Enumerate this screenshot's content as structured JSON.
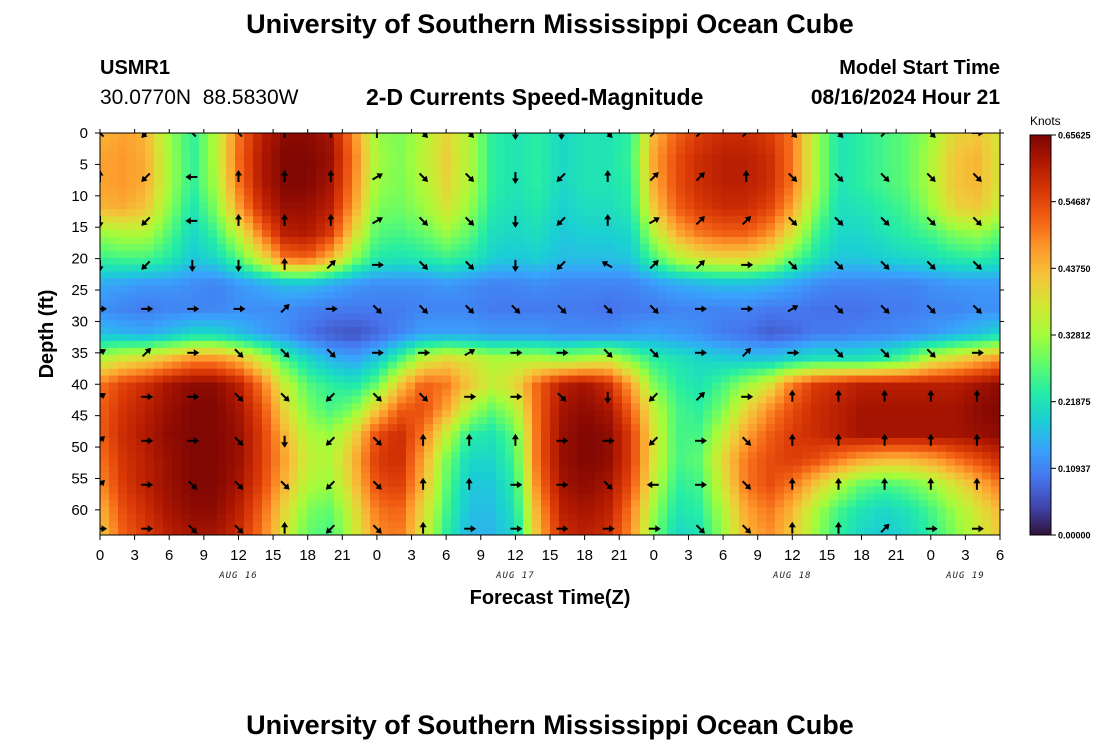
{
  "header": {
    "title": "University of Southern Mississippi Ocean Cube",
    "station_id": "USMR1",
    "coordinates": "30.0770N  88.5830W",
    "plot_title": "2-D Currents Speed-Magnitude",
    "model_start_label": "Model Start Time",
    "model_start_value": "08/16/2024 Hour 21"
  },
  "footer": {
    "title": "University of Southern Mississippi Ocean Cube"
  },
  "colors": {
    "palette": [
      "#30123b",
      "#4145ab",
      "#4675ed",
      "#39a2fc",
      "#1bcfd4",
      "#24eca6",
      "#61fc6c",
      "#a4fc3b",
      "#d1e834",
      "#f3c63a",
      "#fe9b2d",
      "#f36315",
      "#d93806",
      "#b11901",
      "#7a0403"
    ]
  },
  "chart_data": {
    "type": "heatmap",
    "title": "2-D Currents Speed-Magnitude",
    "xlabel": "Forecast Time(Z)",
    "ylabel": "Depth (ft)",
    "x_range_hours": [
      0,
      78
    ],
    "y_range_ft": [
      0,
      64
    ],
    "x_ticks": [
      {
        "h": 0,
        "label": "0"
      },
      {
        "h": 3,
        "label": "3"
      },
      {
        "h": 6,
        "label": "6"
      },
      {
        "h": 9,
        "label": "9"
      },
      {
        "h": 12,
        "label": "12"
      },
      {
        "h": 15,
        "label": "15"
      },
      {
        "h": 18,
        "label": "18"
      },
      {
        "h": 21,
        "label": "21"
      },
      {
        "h": 24,
        "label": "0"
      },
      {
        "h": 27,
        "label": "3"
      },
      {
        "h": 30,
        "label": "6"
      },
      {
        "h": 33,
        "label": "9"
      },
      {
        "h": 36,
        "label": "12"
      },
      {
        "h": 39,
        "label": "15"
      },
      {
        "h": 42,
        "label": "18"
      },
      {
        "h": 45,
        "label": "21"
      },
      {
        "h": 48,
        "label": "0"
      },
      {
        "h": 51,
        "label": "3"
      },
      {
        "h": 54,
        "label": "6"
      },
      {
        "h": 57,
        "label": "9"
      },
      {
        "h": 60,
        "label": "12"
      },
      {
        "h": 63,
        "label": "15"
      },
      {
        "h": 66,
        "label": "18"
      },
      {
        "h": 69,
        "label": "21"
      },
      {
        "h": 72,
        "label": "0"
      },
      {
        "h": 75,
        "label": "3"
      },
      {
        "h": 78,
        "label": "6"
      }
    ],
    "date_labels": [
      {
        "h": 12,
        "label": "AUG 16"
      },
      {
        "h": 36,
        "label": "AUG 17"
      },
      {
        "h": 60,
        "label": "AUG 18"
      },
      {
        "h": 75,
        "label": "AUG 19"
      }
    ],
    "y_ticks": [
      0,
      5,
      10,
      15,
      20,
      25,
      30,
      35,
      40,
      45,
      50,
      55,
      60
    ],
    "colorbar": {
      "unit": "Knots",
      "min": 0.0,
      "max": 0.65625,
      "labels": [
        "0.00000",
        "0.10937",
        "0.21875",
        "0.32812",
        "0.43750",
        "0.54687",
        "0.65625"
      ]
    },
    "time_hours": [
      0,
      2,
      4,
      6,
      8,
      10,
      12,
      14,
      16,
      18,
      20,
      22,
      24,
      26,
      28,
      30,
      32,
      34,
      36,
      38,
      40,
      42,
      44,
      46,
      48,
      50,
      52,
      54,
      56,
      58,
      60,
      62,
      64,
      66,
      68,
      70,
      72,
      74,
      76,
      78
    ],
    "depth_ft": [
      0,
      4,
      8,
      12,
      16,
      20,
      24,
      28,
      32,
      36,
      40,
      44,
      48,
      52,
      56,
      60,
      64
    ],
    "speed_knots": [
      [
        0.44,
        0.46,
        0.44,
        0.32,
        0.24,
        0.34,
        0.5,
        0.6,
        0.64,
        0.64,
        0.62,
        0.48,
        0.32,
        0.3,
        0.34,
        0.4,
        0.34,
        0.24,
        0.22,
        0.24,
        0.2,
        0.22,
        0.22,
        0.24,
        0.44,
        0.52,
        0.56,
        0.58,
        0.58,
        0.56,
        0.5,
        0.34,
        0.22,
        0.24,
        0.26,
        0.28,
        0.32,
        0.4,
        0.42,
        0.38
      ],
      [
        0.46,
        0.47,
        0.45,
        0.33,
        0.24,
        0.34,
        0.51,
        0.61,
        0.65,
        0.65,
        0.63,
        0.5,
        0.33,
        0.3,
        0.35,
        0.41,
        0.34,
        0.24,
        0.22,
        0.24,
        0.2,
        0.22,
        0.22,
        0.25,
        0.46,
        0.54,
        0.58,
        0.6,
        0.6,
        0.58,
        0.5,
        0.34,
        0.22,
        0.24,
        0.26,
        0.28,
        0.34,
        0.42,
        0.44,
        0.38
      ],
      [
        0.46,
        0.47,
        0.45,
        0.33,
        0.24,
        0.33,
        0.5,
        0.61,
        0.65,
        0.65,
        0.62,
        0.49,
        0.32,
        0.3,
        0.34,
        0.4,
        0.34,
        0.24,
        0.22,
        0.24,
        0.2,
        0.22,
        0.22,
        0.24,
        0.45,
        0.54,
        0.58,
        0.6,
        0.6,
        0.58,
        0.5,
        0.34,
        0.22,
        0.24,
        0.26,
        0.28,
        0.34,
        0.42,
        0.44,
        0.38
      ],
      [
        0.44,
        0.45,
        0.42,
        0.31,
        0.22,
        0.3,
        0.46,
        0.58,
        0.63,
        0.63,
        0.6,
        0.46,
        0.3,
        0.29,
        0.32,
        0.38,
        0.32,
        0.23,
        0.21,
        0.23,
        0.19,
        0.21,
        0.21,
        0.23,
        0.42,
        0.52,
        0.56,
        0.58,
        0.58,
        0.55,
        0.46,
        0.31,
        0.21,
        0.22,
        0.24,
        0.26,
        0.32,
        0.4,
        0.42,
        0.36
      ],
      [
        0.32,
        0.34,
        0.34,
        0.27,
        0.2,
        0.25,
        0.36,
        0.5,
        0.6,
        0.61,
        0.56,
        0.4,
        0.27,
        0.26,
        0.28,
        0.32,
        0.28,
        0.21,
        0.2,
        0.21,
        0.18,
        0.19,
        0.19,
        0.2,
        0.34,
        0.45,
        0.5,
        0.52,
        0.52,
        0.48,
        0.38,
        0.26,
        0.2,
        0.2,
        0.22,
        0.24,
        0.26,
        0.3,
        0.32,
        0.28
      ],
      [
        0.25,
        0.26,
        0.26,
        0.23,
        0.18,
        0.2,
        0.27,
        0.38,
        0.5,
        0.52,
        0.44,
        0.31,
        0.23,
        0.22,
        0.23,
        0.25,
        0.23,
        0.19,
        0.18,
        0.19,
        0.17,
        0.17,
        0.17,
        0.18,
        0.26,
        0.34,
        0.38,
        0.4,
        0.4,
        0.36,
        0.28,
        0.22,
        0.18,
        0.18,
        0.19,
        0.2,
        0.21,
        0.23,
        0.24,
        0.22
      ],
      [
        0.15,
        0.14,
        0.13,
        0.13,
        0.12,
        0.11,
        0.13,
        0.15,
        0.17,
        0.17,
        0.15,
        0.13,
        0.12,
        0.12,
        0.12,
        0.13,
        0.12,
        0.11,
        0.11,
        0.12,
        0.11,
        0.11,
        0.11,
        0.11,
        0.13,
        0.15,
        0.16,
        0.17,
        0.17,
        0.16,
        0.14,
        0.12,
        0.11,
        0.11,
        0.11,
        0.11,
        0.12,
        0.13,
        0.13,
        0.13
      ],
      [
        0.12,
        0.11,
        0.1,
        0.11,
        0.11,
        0.11,
        0.12,
        0.12,
        0.12,
        0.11,
        0.1,
        0.1,
        0.1,
        0.1,
        0.11,
        0.11,
        0.11,
        0.1,
        0.1,
        0.1,
        0.1,
        0.1,
        0.09,
        0.1,
        0.1,
        0.11,
        0.11,
        0.11,
        0.11,
        0.1,
        0.1,
        0.09,
        0.09,
        0.09,
        0.1,
        0.1,
        0.11,
        0.11,
        0.12,
        0.12
      ],
      [
        0.17,
        0.16,
        0.15,
        0.17,
        0.2,
        0.2,
        0.17,
        0.14,
        0.12,
        0.09,
        0.07,
        0.06,
        0.08,
        0.11,
        0.14,
        0.14,
        0.14,
        0.13,
        0.13,
        0.13,
        0.12,
        0.12,
        0.12,
        0.13,
        0.14,
        0.13,
        0.12,
        0.1,
        0.09,
        0.07,
        0.08,
        0.1,
        0.1,
        0.11,
        0.11,
        0.12,
        0.13,
        0.15,
        0.17,
        0.2
      ],
      [
        0.34,
        0.38,
        0.4,
        0.44,
        0.48,
        0.48,
        0.44,
        0.36,
        0.26,
        0.2,
        0.16,
        0.14,
        0.18,
        0.26,
        0.36,
        0.4,
        0.38,
        0.34,
        0.34,
        0.34,
        0.32,
        0.34,
        0.36,
        0.3,
        0.24,
        0.22,
        0.2,
        0.19,
        0.18,
        0.18,
        0.2,
        0.22,
        0.22,
        0.22,
        0.24,
        0.28,
        0.36,
        0.4,
        0.44,
        0.48
      ],
      [
        0.5,
        0.55,
        0.58,
        0.62,
        0.64,
        0.64,
        0.6,
        0.5,
        0.36,
        0.27,
        0.24,
        0.22,
        0.28,
        0.42,
        0.52,
        0.5,
        0.42,
        0.36,
        0.4,
        0.52,
        0.6,
        0.62,
        0.58,
        0.46,
        0.3,
        0.24,
        0.22,
        0.26,
        0.32,
        0.38,
        0.5,
        0.56,
        0.58,
        0.6,
        0.6,
        0.6,
        0.6,
        0.6,
        0.62,
        0.64
      ],
      [
        0.52,
        0.57,
        0.6,
        0.63,
        0.65,
        0.65,
        0.62,
        0.54,
        0.4,
        0.3,
        0.26,
        0.3,
        0.42,
        0.52,
        0.54,
        0.46,
        0.34,
        0.28,
        0.34,
        0.52,
        0.62,
        0.64,
        0.62,
        0.52,
        0.36,
        0.26,
        0.24,
        0.3,
        0.4,
        0.48,
        0.54,
        0.58,
        0.6,
        0.62,
        0.62,
        0.62,
        0.62,
        0.62,
        0.64,
        0.65
      ],
      [
        0.52,
        0.58,
        0.61,
        0.64,
        0.65,
        0.65,
        0.63,
        0.56,
        0.44,
        0.34,
        0.32,
        0.4,
        0.54,
        0.58,
        0.5,
        0.36,
        0.24,
        0.22,
        0.28,
        0.52,
        0.63,
        0.65,
        0.64,
        0.56,
        0.38,
        0.26,
        0.26,
        0.36,
        0.46,
        0.52,
        0.56,
        0.58,
        0.6,
        0.62,
        0.62,
        0.62,
        0.62,
        0.62,
        0.63,
        0.64
      ],
      [
        0.5,
        0.57,
        0.6,
        0.63,
        0.65,
        0.65,
        0.63,
        0.56,
        0.46,
        0.36,
        0.34,
        0.44,
        0.56,
        0.58,
        0.46,
        0.3,
        0.2,
        0.2,
        0.26,
        0.52,
        0.63,
        0.65,
        0.64,
        0.56,
        0.38,
        0.26,
        0.28,
        0.4,
        0.5,
        0.54,
        0.56,
        0.54,
        0.5,
        0.46,
        0.44,
        0.44,
        0.46,
        0.5,
        0.54,
        0.58
      ],
      [
        0.48,
        0.56,
        0.6,
        0.63,
        0.65,
        0.65,
        0.62,
        0.55,
        0.44,
        0.34,
        0.32,
        0.42,
        0.54,
        0.56,
        0.44,
        0.28,
        0.18,
        0.18,
        0.24,
        0.5,
        0.62,
        0.64,
        0.62,
        0.54,
        0.36,
        0.24,
        0.26,
        0.38,
        0.5,
        0.54,
        0.5,
        0.42,
        0.34,
        0.28,
        0.26,
        0.28,
        0.32,
        0.38,
        0.44,
        0.5
      ],
      [
        0.44,
        0.54,
        0.58,
        0.62,
        0.64,
        0.64,
        0.6,
        0.52,
        0.4,
        0.3,
        0.28,
        0.38,
        0.5,
        0.52,
        0.4,
        0.26,
        0.17,
        0.17,
        0.22,
        0.46,
        0.6,
        0.62,
        0.6,
        0.5,
        0.32,
        0.22,
        0.24,
        0.34,
        0.46,
        0.5,
        0.44,
        0.34,
        0.26,
        0.22,
        0.2,
        0.22,
        0.26,
        0.32,
        0.38,
        0.44
      ],
      [
        0.42,
        0.52,
        0.56,
        0.6,
        0.62,
        0.62,
        0.58,
        0.5,
        0.38,
        0.28,
        0.26,
        0.36,
        0.48,
        0.5,
        0.38,
        0.24,
        0.16,
        0.16,
        0.2,
        0.44,
        0.58,
        0.6,
        0.58,
        0.48,
        0.3,
        0.2,
        0.22,
        0.32,
        0.44,
        0.48,
        0.42,
        0.32,
        0.24,
        0.2,
        0.18,
        0.2,
        0.24,
        0.3,
        0.36,
        0.42
      ]
    ],
    "vector_hours": [
      0,
      4,
      8,
      12,
      16,
      20,
      24,
      28,
      32,
      36,
      40,
      44,
      48,
      52,
      56,
      60,
      64,
      68,
      72,
      76
    ],
    "vector_depths_ft": [
      0,
      7,
      14,
      21,
      28,
      35,
      42,
      49,
      56,
      63
    ],
    "vector_directions_deg": [
      [
        315,
        225,
        315,
        315,
        0,
        0,
        0,
        135,
        135,
        180,
        180,
        135,
        45,
        45,
        45,
        135,
        135,
        45,
        135,
        90
      ],
      [
        0,
        225,
        270,
        0,
        0,
        0,
        60,
        135,
        135,
        180,
        225,
        0,
        45,
        45,
        0,
        135,
        135,
        135,
        135,
        135
      ],
      [
        180,
        225,
        270,
        0,
        0,
        0,
        60,
        135,
        135,
        180,
        225,
        0,
        60,
        45,
        45,
        135,
        135,
        135,
        135,
        135
      ],
      [
        180,
        225,
        180,
        180,
        0,
        45,
        90,
        135,
        135,
        180,
        225,
        300,
        45,
        45,
        90,
        135,
        135,
        135,
        135,
        135
      ],
      [
        90,
        90,
        90,
        90,
        45,
        90,
        135,
        135,
        135,
        135,
        135,
        135,
        135,
        90,
        90,
        60,
        135,
        135,
        135,
        135
      ],
      [
        60,
        45,
        90,
        135,
        135,
        135,
        90,
        90,
        60,
        90,
        90,
        135,
        135,
        90,
        45,
        90,
        135,
        135,
        135,
        90
      ],
      [
        60,
        90,
        90,
        135,
        135,
        225,
        135,
        135,
        90,
        90,
        135,
        180,
        225,
        45,
        90,
        0,
        0,
        0,
        0,
        0
      ],
      [
        45,
        90,
        90,
        135,
        180,
        225,
        135,
        0,
        0,
        0,
        90,
        90,
        225,
        90,
        135,
        0,
        0,
        0,
        0,
        0
      ],
      [
        45,
        90,
        135,
        135,
        135,
        225,
        135,
        0,
        0,
        90,
        90,
        135,
        270,
        90,
        135,
        0,
        0,
        0,
        0,
        0
      ],
      [
        90,
        90,
        135,
        135,
        0,
        225,
        135,
        0,
        90,
        90,
        90,
        90,
        90,
        135,
        135,
        0,
        0,
        45,
        90,
        90
      ]
    ]
  }
}
